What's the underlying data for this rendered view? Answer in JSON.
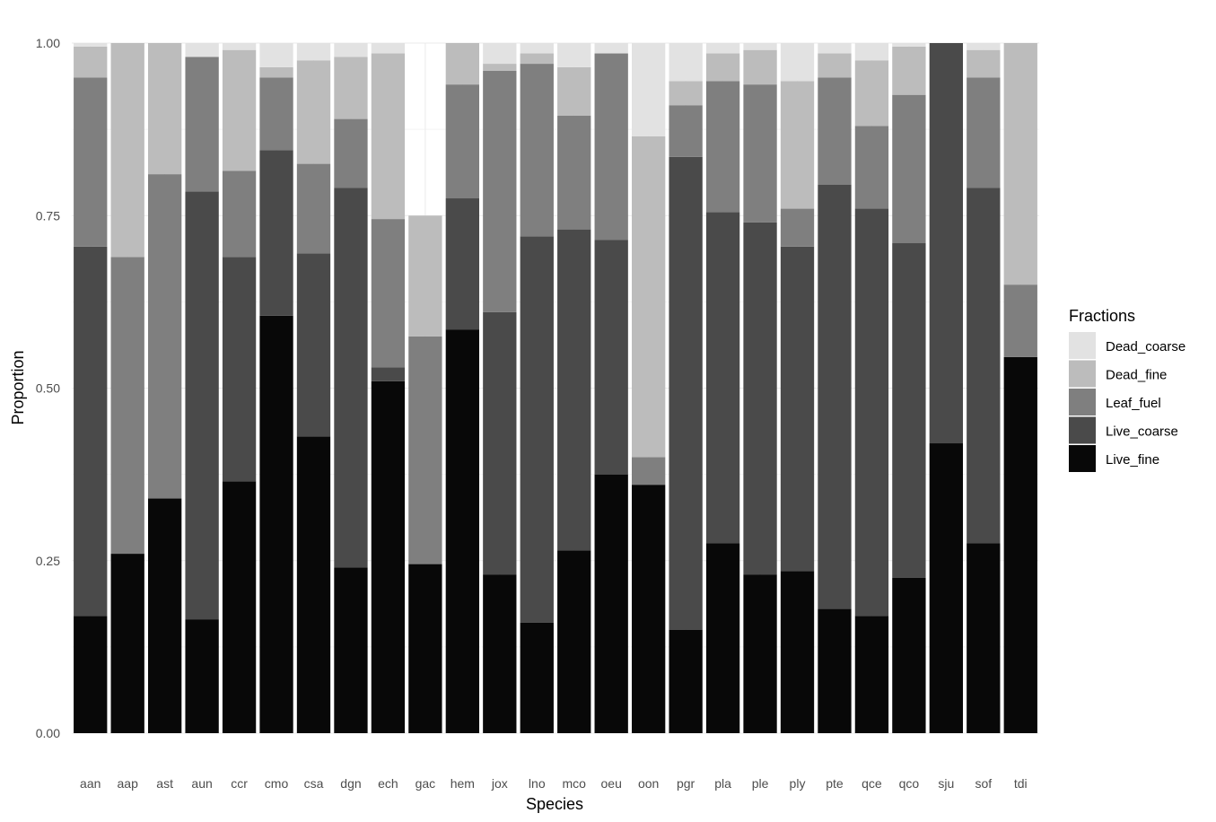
{
  "chart_data": {
    "type": "bar",
    "stacked": true,
    "xlabel": "Species",
    "ylabel": "Proportion",
    "ylim": [
      0,
      1
    ],
    "yticks": [
      "0.00",
      "0.25",
      "0.50",
      "0.75",
      "1.00"
    ],
    "ytick_values": [
      0,
      0.25,
      0.5,
      0.75,
      1.0
    ],
    "grid": true,
    "legend_title": "Fractions",
    "legend_position": "right",
    "categories": [
      "aan",
      "aap",
      "ast",
      "aun",
      "ccr",
      "cmo",
      "csa",
      "dgn",
      "ech",
      "gac",
      "hem",
      "jox",
      "lno",
      "mco",
      "oeu",
      "oon",
      "pgr",
      "pla",
      "ple",
      "ply",
      "pte",
      "qce",
      "qco",
      "sju",
      "sof",
      "tdi"
    ],
    "series": [
      {
        "name": "Live_fine",
        "color": "#080808",
        "values": [
          0.17,
          0.26,
          0.34,
          0.165,
          0.365,
          0.605,
          0.43,
          0.24,
          0.51,
          0.245,
          0.585,
          0.23,
          0.16,
          0.265,
          0.375,
          0.36,
          0.15,
          0.275,
          0.23,
          0.235,
          0.18,
          0.17,
          0.225,
          0.42,
          0.275,
          0.545
        ]
      },
      {
        "name": "Live_coarse",
        "color": "#4a4a4a",
        "values": [
          0.535,
          0.0,
          0.0,
          0.62,
          0.325,
          0.24,
          0.265,
          0.55,
          0.02,
          0.0,
          0.19,
          0.38,
          0.56,
          0.465,
          0.34,
          0.0,
          0.685,
          0.48,
          0.51,
          0.47,
          0.615,
          0.59,
          0.485,
          0.58,
          0.515,
          0.0
        ]
      },
      {
        "name": "Leaf_fuel",
        "color": "#7f7f7f",
        "values": [
          0.245,
          0.43,
          0.47,
          0.195,
          0.125,
          0.105,
          0.13,
          0.1,
          0.215,
          0.33,
          0.165,
          0.35,
          0.25,
          0.165,
          0.27,
          0.04,
          0.075,
          0.19,
          0.2,
          0.055,
          0.155,
          0.12,
          0.215,
          0.0,
          0.16,
          0.105
        ]
      },
      {
        "name": "Dead_fine",
        "color": "#bcbcbc",
        "values": [
          0.045,
          0.31,
          0.19,
          0.0,
          0.175,
          0.015,
          0.15,
          0.09,
          0.24,
          0.175,
          0.06,
          0.01,
          0.015,
          0.07,
          0.0,
          0.465,
          0.035,
          0.04,
          0.05,
          0.185,
          0.035,
          0.095,
          0.07,
          0.0,
          0.04,
          0.35
        ]
      },
      {
        "name": "Dead_coarse",
        "color": "#e2e2e2",
        "values": [
          0.005,
          0.0,
          0.0,
          0.02,
          0.01,
          0.035,
          0.025,
          0.02,
          0.015,
          0.0,
          0.0,
          0.03,
          0.015,
          0.035,
          0.015,
          0.135,
          0.055,
          0.015,
          0.01,
          0.055,
          0.015,
          0.025,
          0.005,
          0.0,
          0.01,
          0.0
        ]
      }
    ]
  }
}
